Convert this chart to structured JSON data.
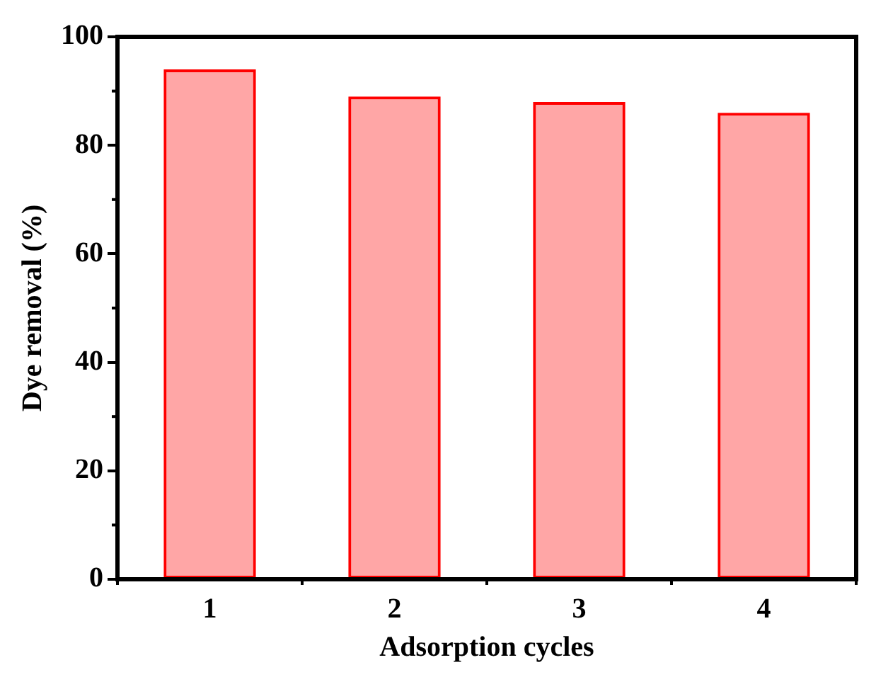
{
  "chart_data": {
    "type": "bar",
    "xlabel": "Adsorption cycles",
    "ylabel": "Dye removal (%)",
    "categories": [
      "1",
      "2",
      "3",
      "4"
    ],
    "values": [
      94,
      89,
      88,
      86
    ],
    "color": "#ff0000",
    "ylim": [
      0,
      100
    ],
    "yticks": [
      0,
      20,
      40,
      60,
      80,
      100
    ],
    "grid": false,
    "legend": false
  }
}
